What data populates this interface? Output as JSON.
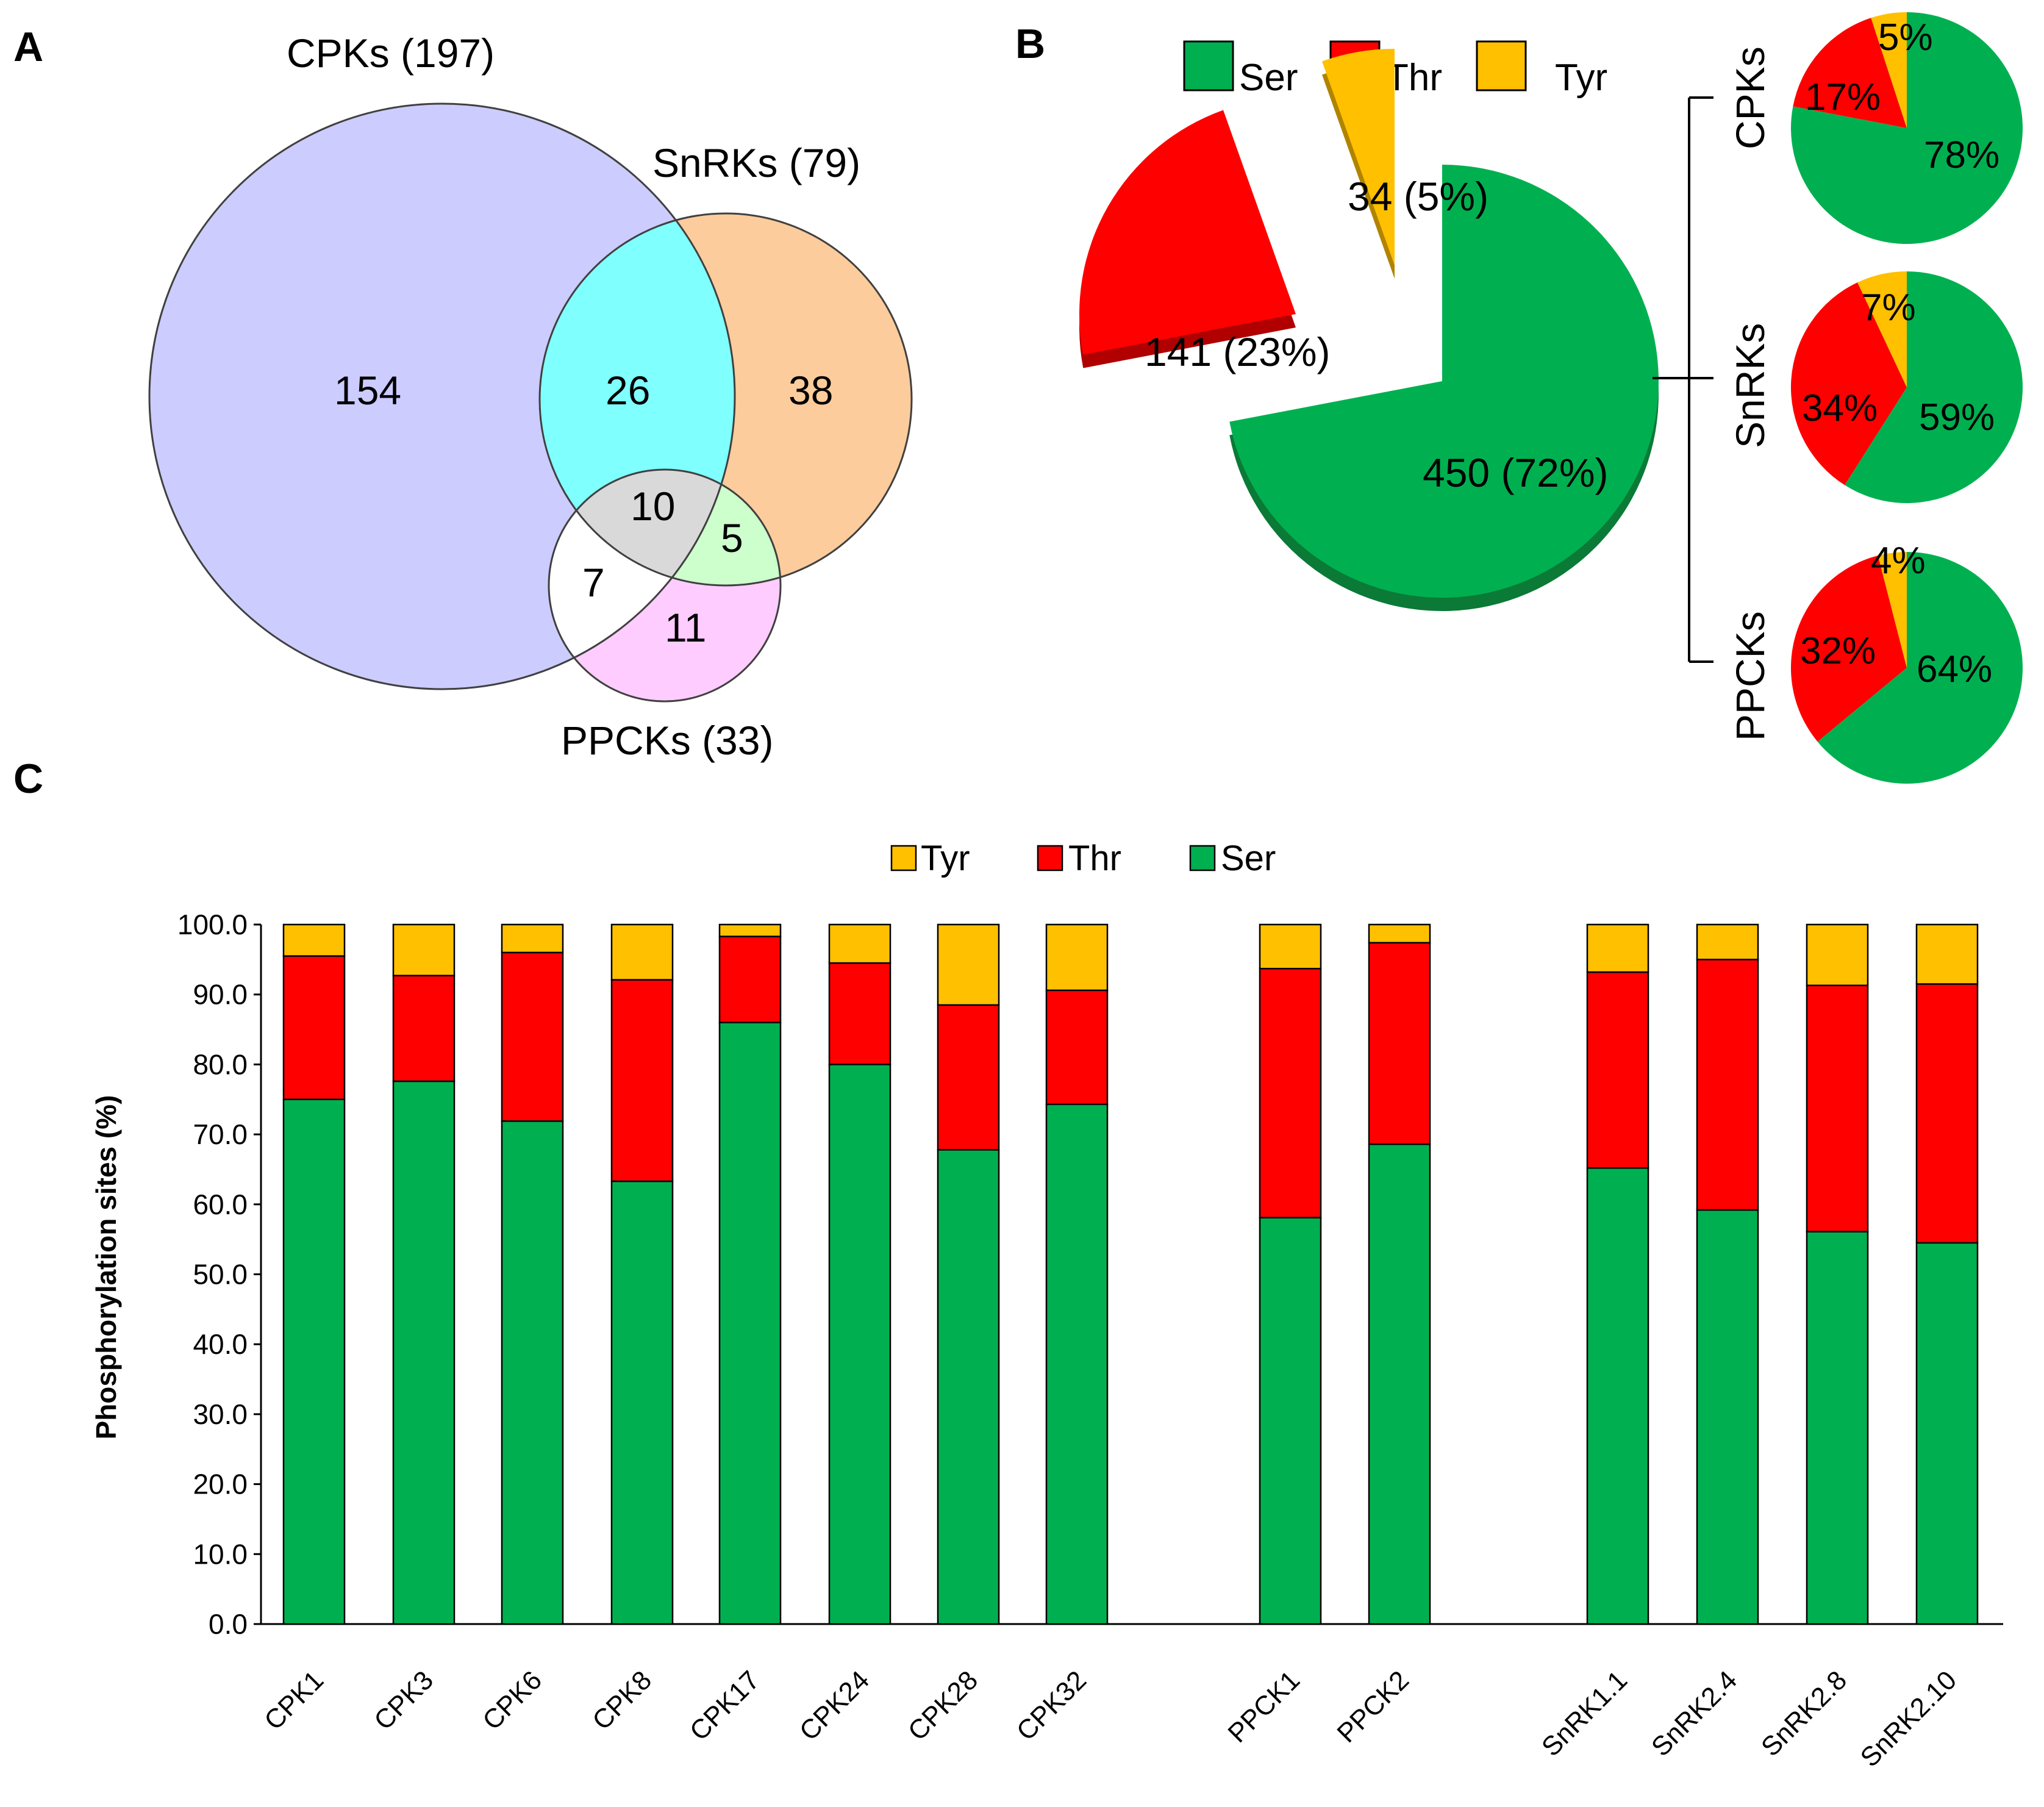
{
  "panels": {
    "a": "A",
    "b": "B",
    "c": "C"
  },
  "venn": {
    "sets": [
      {
        "key": "cpk",
        "label": "CPKs (197)",
        "color": "#ccccff"
      },
      {
        "key": "snrk",
        "label": "SnRKs (79)",
        "color": "#fccc9c"
      },
      {
        "key": "ppck",
        "label": "PPCKs (33)",
        "color": "#ffffff"
      }
    ],
    "regions": {
      "cpk_only": "154",
      "cpk_snrk": "26",
      "snrk_only": "38",
      "all_three": "10",
      "snrk_ppck": "5",
      "cpk_ppck": "7",
      "ppck_only": "11"
    },
    "region_colors": {
      "cpk_snrk": "#80ffff",
      "all_three": "#d9d9d9",
      "snrk_ppck": "#ccffcc",
      "ppck_only": "#ffccff"
    }
  },
  "pie_legend": [
    {
      "label": "Ser",
      "color": "#00b050"
    },
    {
      "label": "Thr",
      "color": "#ff0000"
    },
    {
      "label": "Tyr",
      "color": "#ffc000"
    }
  ],
  "pie_main": {
    "type": "pie",
    "slices": [
      {
        "name": "Ser",
        "value": 450,
        "label": "450 (72%)",
        "color": "#00b050"
      },
      {
        "name": "Thr",
        "value": 141,
        "label": "141 (23%)",
        "color": "#ff0000"
      },
      {
        "name": "Tyr",
        "value": 34,
        "label": "34 (5%)",
        "color": "#ffc000"
      }
    ]
  },
  "small_pies": [
    {
      "family": "CPKs",
      "slices": [
        {
          "name": "Ser",
          "value": 78,
          "label": "78%"
        },
        {
          "name": "Thr",
          "value": 17,
          "label": "17%"
        },
        {
          "name": "Tyr",
          "value": 5,
          "label": "5%"
        }
      ]
    },
    {
      "family": "SnRKs",
      "slices": [
        {
          "name": "Ser",
          "value": 59,
          "label": "59%"
        },
        {
          "name": "Thr",
          "value": 34,
          "label": "34%"
        },
        {
          "name": "Tyr",
          "value": 7,
          "label": "7%"
        }
      ]
    },
    {
      "family": "PPCKs",
      "slices": [
        {
          "name": "Ser",
          "value": 64,
          "label": "64%"
        },
        {
          "name": "Thr",
          "value": 32,
          "label": "32%"
        },
        {
          "name": "Tyr",
          "value": 4,
          "label": "4%"
        }
      ]
    }
  ],
  "chart_data": {
    "type": "bar",
    "stacked": true,
    "legend": [
      "Tyr",
      "Thr",
      "Ser"
    ],
    "ylabel": "Phosphorylation sites (%)",
    "xlabel": "",
    "ylim": [
      0,
      100
    ],
    "yticks": [
      "0.0",
      "10.0",
      "20.0",
      "30.0",
      "40.0",
      "50.0",
      "60.0",
      "70.0",
      "80.0",
      "90.0",
      "100.0"
    ],
    "categories": [
      "CPK1",
      "CPK3",
      "CPK6",
      "CPK8",
      "CPK17",
      "CPK24",
      "CPK28",
      "CPK32",
      "PPCK1",
      "PPCK2",
      "SnRK1.1",
      "SnRK2.4",
      "SnRK2.8",
      "SnRK2.10"
    ],
    "series": [
      {
        "name": "Ser",
        "color": "#00b050",
        "values": [
          75.0,
          77.6,
          71.9,
          63.3,
          86.0,
          80.0,
          67.8,
          74.3,
          58.1,
          68.6,
          65.2,
          59.2,
          56.1,
          54.5
        ]
      },
      {
        "name": "Thr",
        "color": "#ff0000",
        "values": [
          20.5,
          15.1,
          24.1,
          28.8,
          12.3,
          14.5,
          20.7,
          16.3,
          35.6,
          28.8,
          28.0,
          35.8,
          35.2,
          37.0
        ]
      },
      {
        "name": "Tyr",
        "color": "#ffc000",
        "values": [
          4.5,
          7.3,
          4.0,
          7.9,
          1.7,
          5.5,
          11.5,
          9.4,
          6.3,
          2.6,
          6.8,
          5.0,
          8.7,
          8.5
        ]
      }
    ]
  }
}
